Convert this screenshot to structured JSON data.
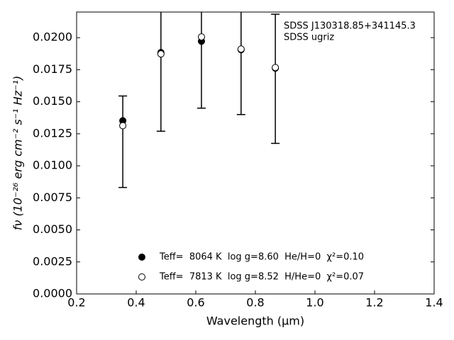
{
  "chart_data": {
    "type": "scatter",
    "xlabel": "Wavelength (μm)",
    "ylabel": "fν (10⁻²⁶ erg cm⁻² s⁻¹ Hz⁻¹)",
    "annotations": [
      "SDSS J130318.85+341145.3",
      "SDSS ugriz"
    ],
    "x": [
      0.355,
      0.483,
      0.619,
      0.752,
      0.867
    ],
    "series": [
      {
        "name": "Teff=  8064 K  log g=8.60  He/H=0  χ²=0.10",
        "color": "#000000",
        "marker": "filled",
        "values": [
          0.01352,
          0.01884,
          0.01972,
          0.01906,
          0.01762
        ]
      },
      {
        "name": "Teff=  7813 K  log g=8.52  H/He=0  χ²=0.07",
        "color": "#000000",
        "marker": "open",
        "values": [
          0.01313,
          0.01873,
          0.02006,
          0.01911,
          0.01767
        ]
      }
    ],
    "errorbars": {
      "color": "#000000",
      "values": [
        0.01188,
        0.0188,
        0.0198,
        0.0191,
        0.01679
      ],
      "errors": [
        0.00357,
        0.0061,
        0.0053,
        0.0051,
        0.00504
      ]
    },
    "xlim": [
      0.2,
      1.4
    ],
    "ylim": [
      0,
      0.022
    ],
    "xticks": [
      0.2,
      0.4,
      0.6,
      0.8,
      {
        "value": 1,
        "label": "1.0"
      },
      1.2,
      1.4
    ],
    "yticks": [
      {
        "value": 0,
        "label": "0.0000"
      },
      {
        "value": 0.0025,
        "label": "0.0025"
      },
      {
        "value": 0.005,
        "label": "0.0050"
      },
      {
        "value": 0.0075,
        "label": "0.0075"
      },
      {
        "value": 0.01,
        "label": "0.0100"
      },
      {
        "value": 0.0125,
        "label": "0.0125"
      },
      {
        "value": 0.015,
        "label": "0.0150"
      },
      {
        "value": 0.0175,
        "label": "0.0175"
      },
      {
        "value": 0.02,
        "label": "0.0200"
      }
    ],
    "legend": "lower center",
    "grid": false
  }
}
